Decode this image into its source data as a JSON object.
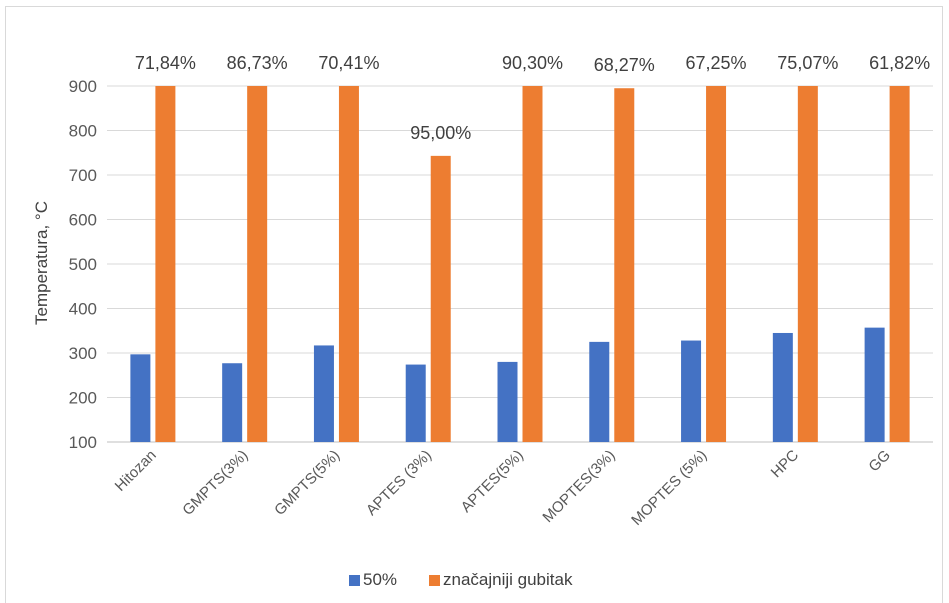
{
  "chart_data": {
    "type": "bar",
    "title": "",
    "xlabel": "",
    "ylabel": "Temperatura, °C",
    "ylim": [
      100,
      900
    ],
    "yticks": [
      100,
      200,
      300,
      400,
      500,
      600,
      700,
      800,
      900
    ],
    "grid": true,
    "legend_position": "bottom",
    "categories": [
      "Hitozan",
      "GMPTS(3%)",
      "GMPTS(5%)",
      "APTES (3%)",
      "APTES(5%)",
      "MOPTES(3%)",
      "MOPTES (5%)",
      "HPC",
      "GG"
    ],
    "series": [
      {
        "name": "50%",
        "color": "#4472c4",
        "values": [
          297,
          277,
          317,
          274,
          280,
          325,
          328,
          345,
          357
        ]
      },
      {
        "name": "značajniji gubitak",
        "color": "#ed7d31",
        "values": [
          900,
          900,
          900,
          743,
          900,
          895,
          900,
          900,
          900
        ],
        "data_labels": [
          "71,84%",
          "86,73%",
          "70,41%",
          "95,00%",
          "90,30%",
          "68,27%",
          "67,25%",
          "75,07%",
          "61,82%"
        ]
      }
    ]
  }
}
